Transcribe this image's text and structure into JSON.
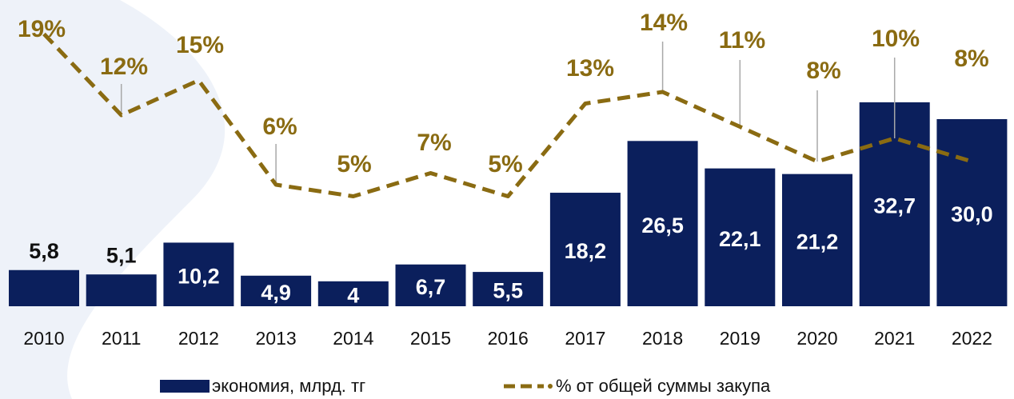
{
  "chart_data": {
    "type": "bar",
    "categories": [
      "2010",
      "2011",
      "2012",
      "2013",
      "2014",
      "2015",
      "2016",
      "2017",
      "2018",
      "2019",
      "2020",
      "2021",
      "2022"
    ],
    "series": [
      {
        "name": "экономия, млрд. тг",
        "type": "bar",
        "color": "#0b1f5c",
        "values": [
          5.8,
          5.1,
          10.2,
          4.9,
          4,
          6.7,
          5.5,
          18.2,
          26.5,
          22.1,
          21.2,
          32.7,
          30.0
        ],
        "value_labels": [
          "5,8",
          "5,1",
          "10,2",
          "4,9",
          "4",
          "6,7",
          "5,5",
          "18,2",
          "26,5",
          "22,1",
          "21,2",
          "32,7",
          "30,0"
        ]
      },
      {
        "name": "% от общей суммы закупа",
        "type": "line",
        "axis": "y2",
        "color": "#8a6b12",
        "values": [
          19,
          12,
          15,
          6,
          5,
          7,
          5,
          13,
          14,
          11,
          8,
          10,
          8
        ],
        "value_labels": [
          "19%",
          "12%",
          "15%",
          "6%",
          "5%",
          "7%",
          "5%",
          "13%",
          "14%",
          "11%",
          "8%",
          "10%",
          "8%"
        ]
      }
    ],
    "ylim": [
      0,
      40
    ],
    "y2lim": [
      0,
      20
    ],
    "legend": "bottom"
  }
}
